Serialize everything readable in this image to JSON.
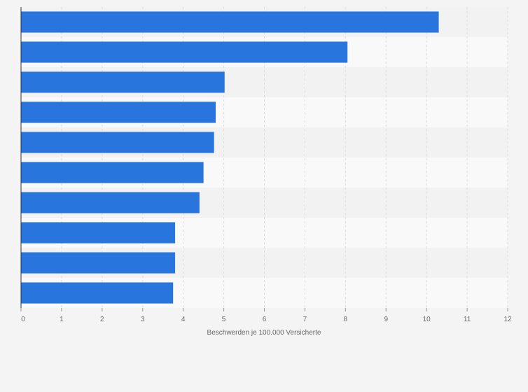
{
  "chart_data": {
    "type": "bar",
    "orientation": "horizontal",
    "categories": [
      "",
      "",
      "",
      "",
      "",
      "",
      "",
      "",
      "",
      ""
    ],
    "values": [
      10.3,
      8.05,
      5.02,
      4.8,
      4.76,
      4.5,
      4.4,
      3.8,
      3.8,
      3.75
    ],
    "title": "",
    "xlabel": "Beschwerden je 100.000 Versicherte",
    "ylabel": "",
    "xlim": [
      0,
      12
    ],
    "xticks": [
      "0",
      "1",
      "2",
      "3",
      "4",
      "5",
      "6",
      "7",
      "8",
      "9",
      "10",
      "11",
      "12"
    ],
    "grid": true,
    "legend": "none"
  },
  "colors": {
    "bar": "#2876dd",
    "background": "#f4f4f5",
    "band_light": "#f9f9f9",
    "band_dark": "#f2f2f3",
    "grid": "#dcdcdc",
    "axis": "#333333"
  }
}
